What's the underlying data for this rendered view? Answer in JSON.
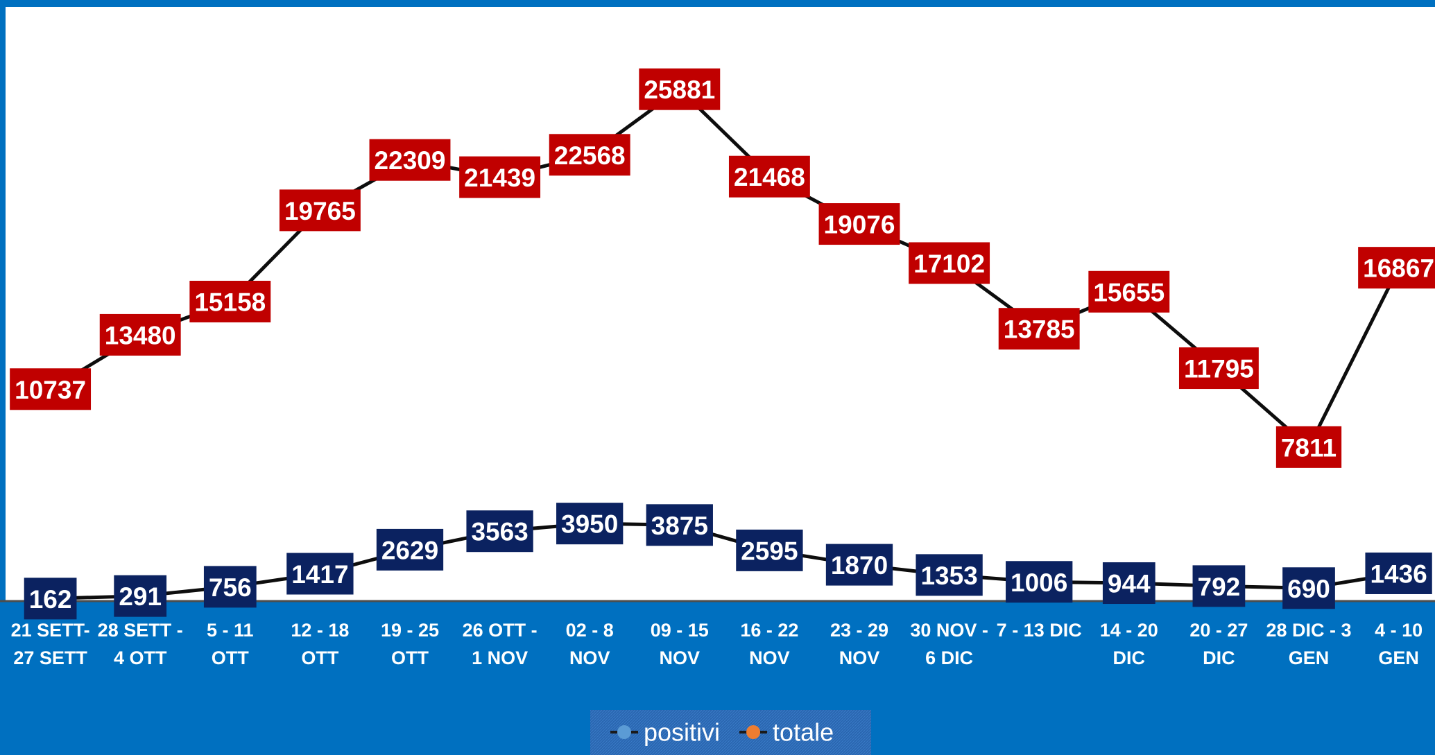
{
  "chart_data": {
    "type": "line",
    "categories": [
      "21 SETT-\n27 SETT",
      "28 SETT -\n4 OTT",
      "5 - 11\nOTT",
      "12 - 18\nOTT",
      "19 - 25\nOTT",
      "26 OTT -\n1 NOV",
      "02 - 8\nNOV",
      "09 - 15\nNOV",
      "16 - 22\nNOV",
      "23 - 29\nNOV",
      "30 NOV -\n6 DIC",
      "7 - 13 DIC",
      "14 - 20\nDIC",
      "20 - 27\nDIC",
      "28 DIC - 3\nGEN",
      "4 - 10\nGEN"
    ],
    "series": [
      {
        "name": "positivi",
        "color": "#0b2260",
        "legend_color": "#5b9bd5",
        "values": [
          162,
          291,
          756,
          1417,
          2629,
          3563,
          3950,
          3875,
          2595,
          1870,
          1353,
          1006,
          944,
          792,
          690,
          1436
        ]
      },
      {
        "name": "totale",
        "color": "#c00000",
        "legend_color": "#ed7d31",
        "values": [
          10737,
          13480,
          15158,
          19765,
          22309,
          21439,
          22568,
          25881,
          21468,
          19076,
          17102,
          13785,
          15655,
          11795,
          7811,
          16867
        ]
      }
    ],
    "line_color": "#0d0d0d",
    "ylim": [
      0,
      30000
    ],
    "legend": "bottom"
  }
}
